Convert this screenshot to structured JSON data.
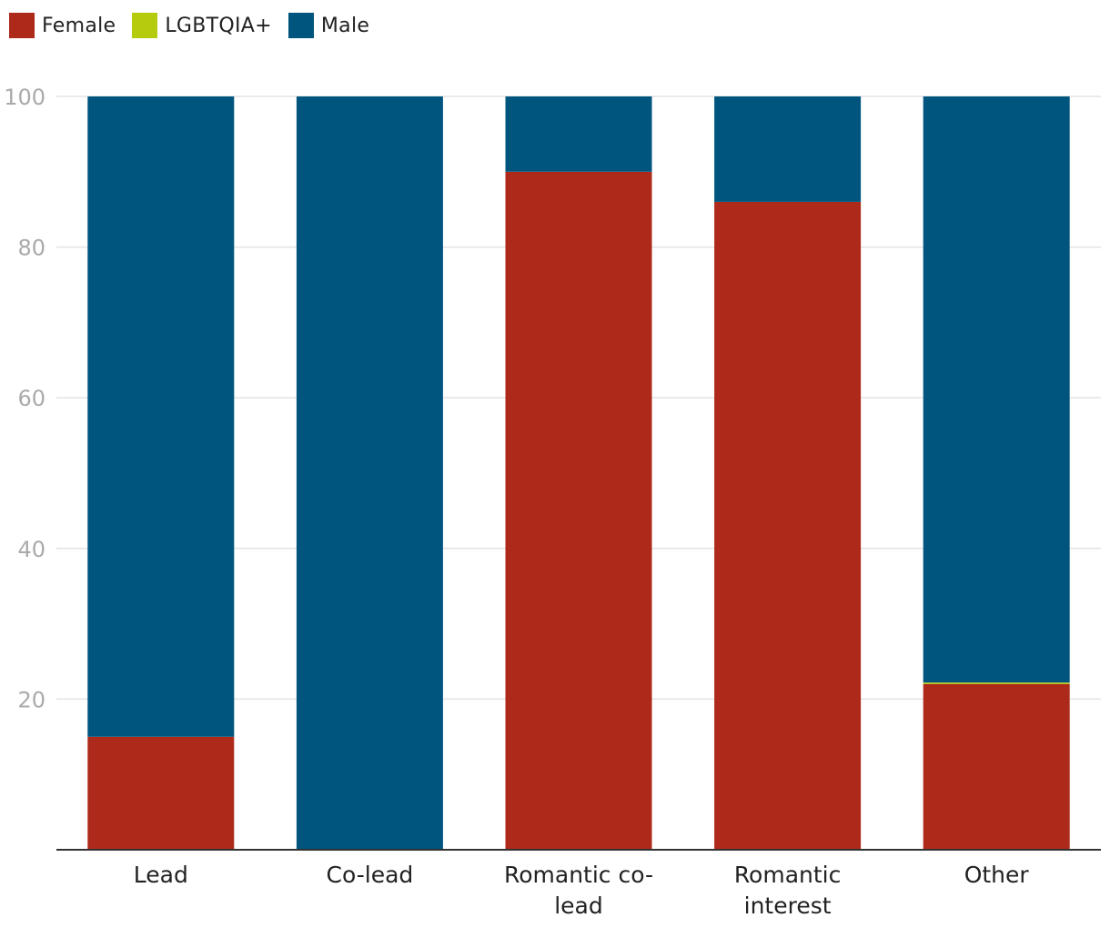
{
  "chart_data": {
    "type": "bar",
    "stacked": true,
    "categories": [
      "Lead",
      "Co-lead",
      "Romantic co-lead",
      "Romantic interest",
      "Other"
    ],
    "category_lines": [
      [
        "Lead"
      ],
      [
        "Co-lead"
      ],
      [
        "Romantic co-",
        "lead"
      ],
      [
        "Romantic",
        "interest"
      ],
      [
        "Other"
      ]
    ],
    "series": [
      {
        "name": "Female",
        "color": "#ad2a1a",
        "values": [
          15,
          0,
          90,
          86,
          22
        ]
      },
      {
        "name": "LGBTQIA+",
        "color": "#b5cc0e",
        "values": [
          0,
          0,
          0,
          0,
          0.2
        ]
      },
      {
        "name": "Male",
        "color": "#00557f",
        "values": [
          85,
          100,
          10,
          14,
          77.8
        ]
      }
    ],
    "yticks": [
      20,
      40,
      60,
      80,
      100
    ],
    "ylim": [
      0,
      100
    ],
    "grid": true,
    "legend_position": "top-left",
    "title": "",
    "xlabel": "",
    "ylabel": ""
  }
}
